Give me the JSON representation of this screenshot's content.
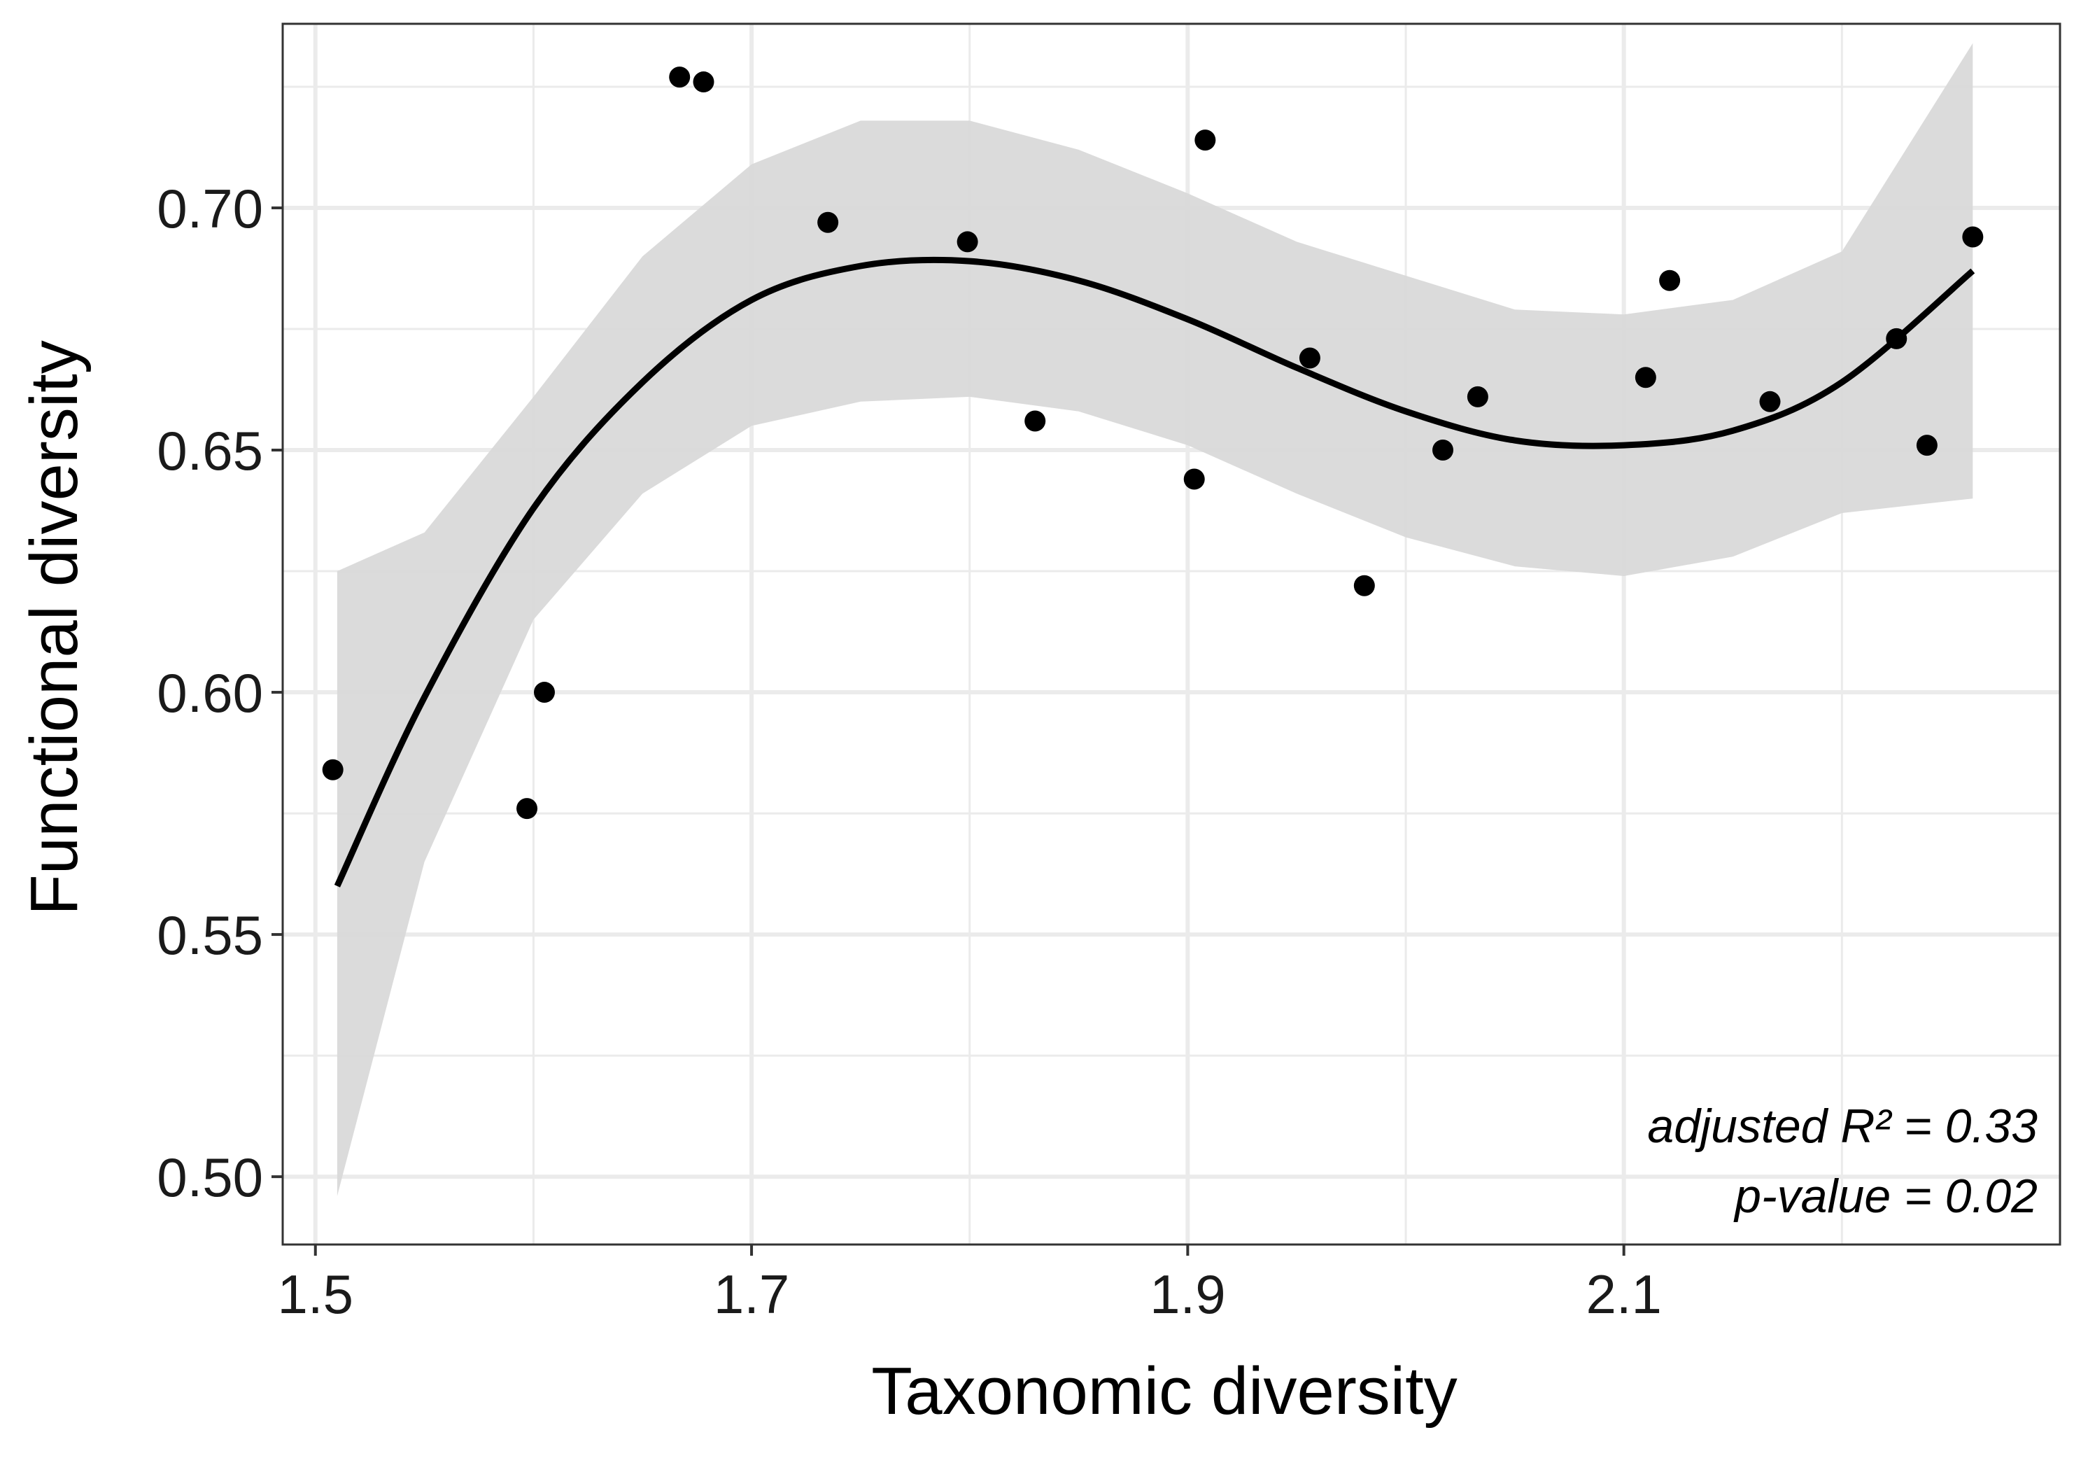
{
  "chart_data": {
    "type": "scatter",
    "xlabel": "Taxonomic diversity",
    "ylabel": "Functional diversity",
    "xlim": [
      1.485,
      2.3
    ],
    "ylim": [
      0.486,
      0.738
    ],
    "x_major_ticks": [
      1.5,
      1.7,
      1.9,
      2.1
    ],
    "x_tick_labels": [
      "1.5",
      "1.7",
      "1.9",
      "2.1"
    ],
    "x_minor_ticks": [
      1.6,
      1.8,
      2.0,
      2.2
    ],
    "y_major_ticks": [
      0.5,
      0.55,
      0.6,
      0.65,
      0.7
    ],
    "y_tick_labels": [
      "0.50",
      "0.55",
      "0.60",
      "0.65",
      "0.70"
    ],
    "y_minor_ticks": [
      0.525,
      0.575,
      0.625,
      0.675,
      0.725
    ],
    "grid": true,
    "points": [
      {
        "x": 1.508,
        "y": 0.584
      },
      {
        "x": 1.597,
        "y": 0.576
      },
      {
        "x": 1.605,
        "y": 0.6
      },
      {
        "x": 1.667,
        "y": 0.727
      },
      {
        "x": 1.678,
        "y": 0.726
      },
      {
        "x": 1.735,
        "y": 0.697
      },
      {
        "x": 1.799,
        "y": 0.693
      },
      {
        "x": 1.83,
        "y": 0.656
      },
      {
        "x": 1.903,
        "y": 0.644
      },
      {
        "x": 1.908,
        "y": 0.714
      },
      {
        "x": 1.956,
        "y": 0.669
      },
      {
        "x": 1.981,
        "y": 0.622
      },
      {
        "x": 2.017,
        "y": 0.65
      },
      {
        "x": 2.033,
        "y": 0.661
      },
      {
        "x": 2.11,
        "y": 0.665
      },
      {
        "x": 2.121,
        "y": 0.685
      },
      {
        "x": 2.167,
        "y": 0.66
      },
      {
        "x": 2.225,
        "y": 0.673
      },
      {
        "x": 2.239,
        "y": 0.651
      },
      {
        "x": 2.26,
        "y": 0.694
      }
    ],
    "fit_line": {
      "x": [
        1.51,
        1.55,
        1.6,
        1.65,
        1.7,
        1.75,
        1.8,
        1.85,
        1.9,
        1.95,
        2.0,
        2.05,
        2.1,
        2.15,
        2.2,
        2.26
      ],
      "y": [
        0.56,
        0.599,
        0.638,
        0.664,
        0.681,
        0.688,
        0.689,
        0.685,
        0.677,
        0.667,
        0.658,
        0.652,
        0.651,
        0.654,
        0.664,
        0.687
      ]
    },
    "confidence_band": {
      "x": [
        1.51,
        1.55,
        1.6,
        1.65,
        1.7,
        1.75,
        1.8,
        1.85,
        1.9,
        1.95,
        2.0,
        2.05,
        2.1,
        2.15,
        2.2,
        2.26
      ],
      "lower": [
        0.496,
        0.565,
        0.615,
        0.641,
        0.655,
        0.66,
        0.661,
        0.658,
        0.651,
        0.641,
        0.632,
        0.626,
        0.624,
        0.628,
        0.637,
        0.64
      ],
      "upper": [
        0.625,
        0.633,
        0.661,
        0.69,
        0.709,
        0.718,
        0.718,
        0.712,
        0.703,
        0.693,
        0.686,
        0.679,
        0.678,
        0.681,
        0.691,
        0.734
      ]
    },
    "annotations": [
      "adjusted R² = 0.33",
      "p-value = 0.02"
    ],
    "colors": {
      "points": "#000000",
      "line": "#000000",
      "band": "#d9d9d9",
      "grid": "#ebebeb",
      "frame": "#333333"
    }
  }
}
